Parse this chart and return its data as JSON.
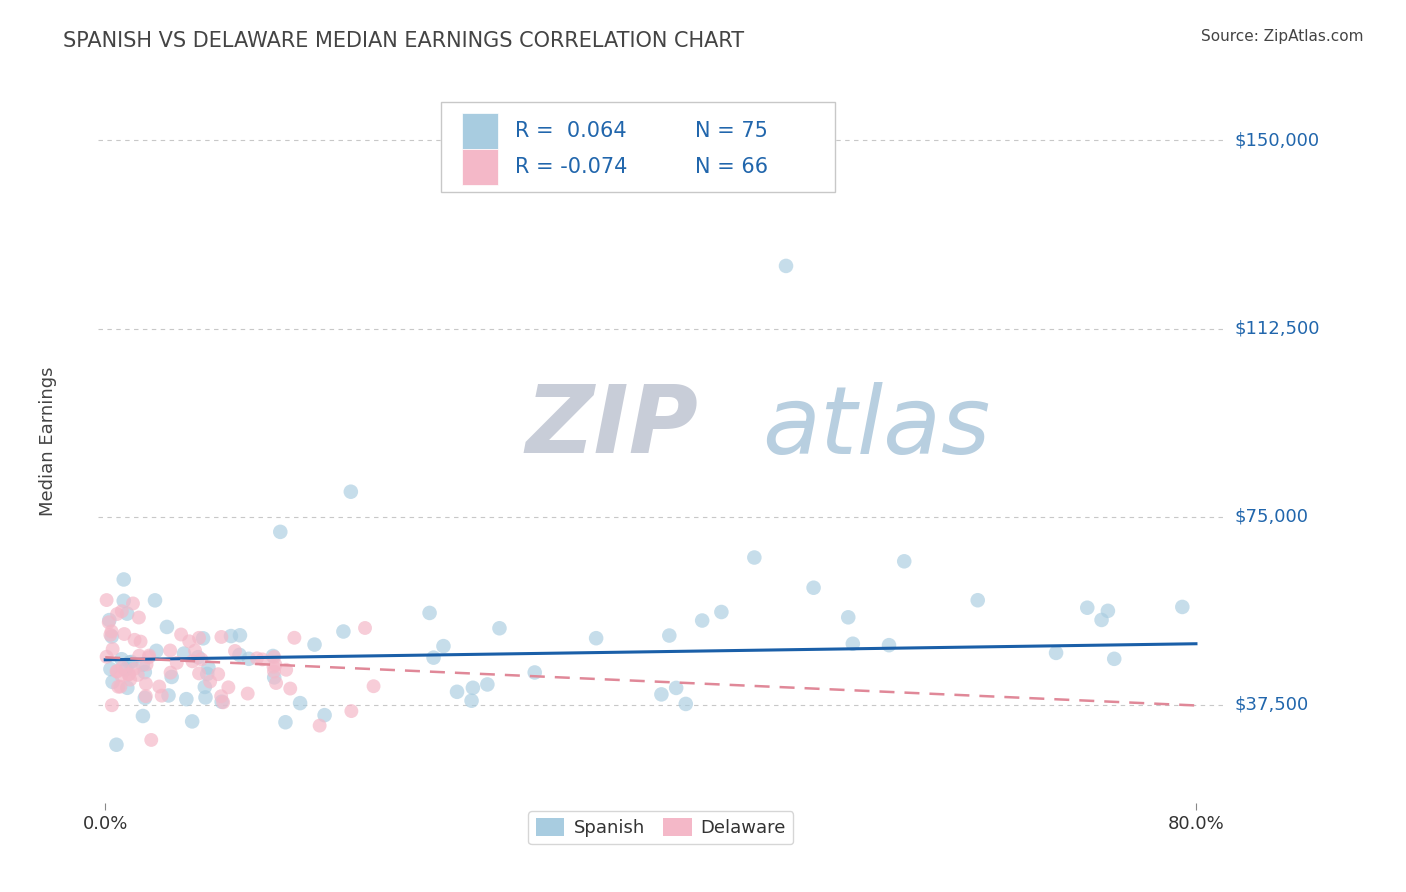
{
  "title": "SPANISH VS DELAWARE MEDIAN EARNINGS CORRELATION CHART",
  "source": "Source: ZipAtlas.com",
  "ylabel": "Median Earnings",
  "yticks": [
    37500,
    75000,
    112500,
    150000
  ],
  "ytick_labels": [
    "$37,500",
    "$75,000",
    "$112,500",
    "$150,000"
  ],
  "xlim_min": -0.005,
  "xlim_max": 0.82,
  "ylim_min": 18000,
  "ylim_max": 162000,
  "blue_scatter_color": "#a8cce0",
  "pink_scatter_color": "#f4b8c8",
  "blue_line_color": "#1a5fa8",
  "pink_line_color": "#e08898",
  "title_color": "#444444",
  "axis_color": "#2166ac",
  "source_color": "#444444",
  "grid_color": "#c8c8c8",
  "watermark_zip_color": "#d0d8e8",
  "watermark_atlas_color": "#c0d4e8",
  "legend_text_color": "#2166ac",
  "legend_r1": "R =  0.064",
  "legend_n1": "N = 75",
  "legend_r2": "R = -0.074",
  "legend_n2": "N = 66",
  "sp_label": "Spanish",
  "de_label": "Delaware",
  "background_color": "#ffffff"
}
